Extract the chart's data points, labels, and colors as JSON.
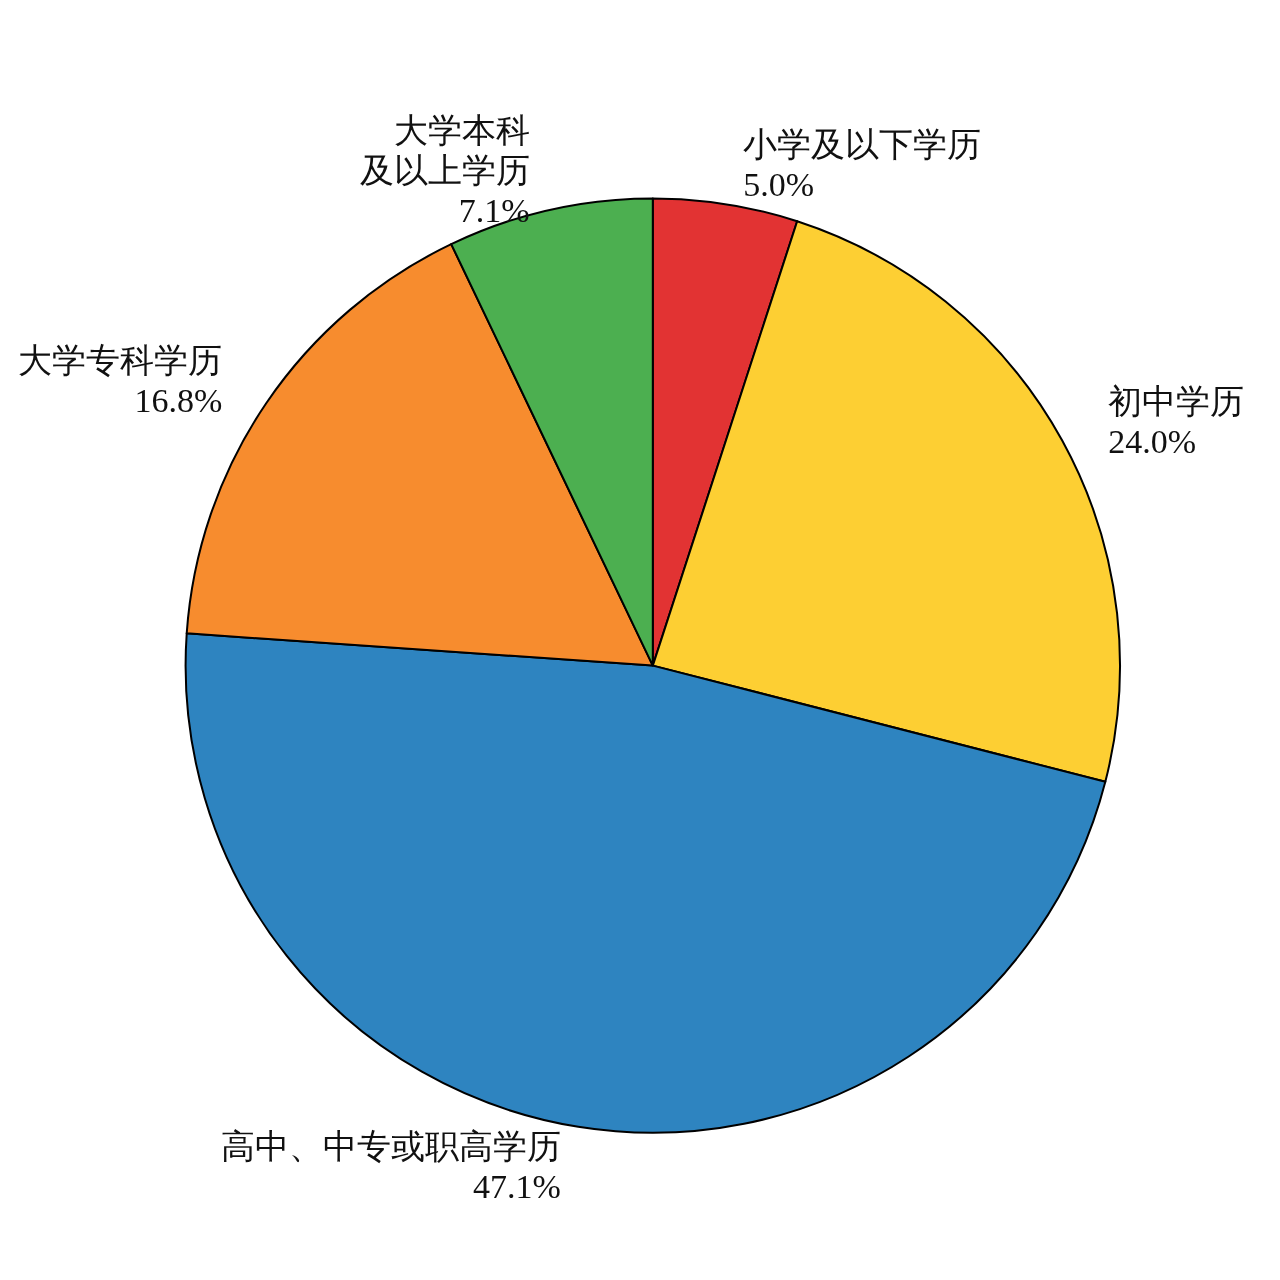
{
  "chart_data": {
    "type": "pie",
    "categories": [
      "小学及以下学历",
      "初中学历",
      "高中、中专或职高学历",
      "大学专科学历",
      "大学本科及以上学历"
    ],
    "values": [
      5.0,
      24.0,
      47.1,
      16.8,
      7.1
    ],
    "value_labels": [
      "5.0%",
      "24.0%",
      "47.1%",
      "16.8%",
      "7.1%"
    ],
    "colors": [
      "#e23333",
      "#fdcf33",
      "#2e84c0",
      "#f78c2e",
      "#4caf50"
    ],
    "legend": false
  }
}
